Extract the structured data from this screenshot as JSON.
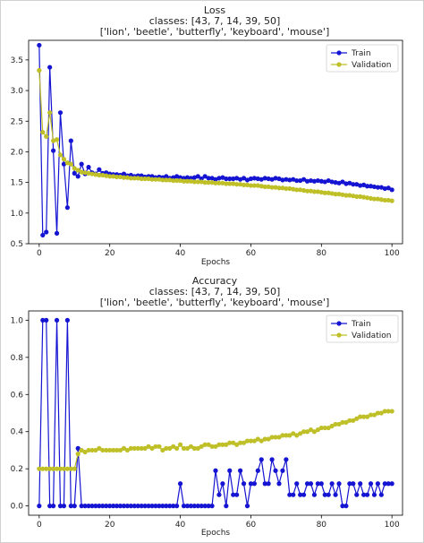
{
  "colors": {
    "train": "#1414d2",
    "validation": "#bfbf28",
    "axis": "#000000",
    "frame": "#c8c8c8"
  },
  "chart_data": [
    {
      "type": "line",
      "title": "Loss",
      "subtitle_1": "classes: [43, 7, 14, 39, 50]",
      "subtitle_2": "['lion', 'beetle', 'butterfly', 'keyboard', 'mouse']",
      "xlabel": "Epochs",
      "ylabel": "",
      "xlim": [
        -3,
        103
      ],
      "ylim": [
        0.5,
        3.82
      ],
      "xticks": [
        0,
        20,
        40,
        60,
        80,
        100
      ],
      "yticks": [
        0.5,
        1.0,
        1.5,
        2.0,
        2.5,
        3.0,
        3.5
      ],
      "ytick_labels": [
        "0.5",
        "1.0",
        "1.5",
        "2.0",
        "2.5",
        "3.0",
        "3.5"
      ],
      "legend_position": "top-right",
      "grid": false,
      "series": [
        {
          "name": "Train",
          "key": "train",
          "values": [
            3.74,
            0.64,
            0.69,
            3.38,
            2.02,
            0.67,
            2.64,
            1.8,
            1.09,
            2.18,
            1.65,
            1.6,
            1.8,
            1.64,
            1.75,
            1.66,
            1.64,
            1.71,
            1.65,
            1.66,
            1.64,
            1.63,
            1.63,
            1.62,
            1.64,
            1.61,
            1.62,
            1.6,
            1.61,
            1.61,
            1.59,
            1.6,
            1.6,
            1.58,
            1.59,
            1.58,
            1.6,
            1.57,
            1.58,
            1.6,
            1.58,
            1.57,
            1.58,
            1.57,
            1.58,
            1.6,
            1.56,
            1.6,
            1.57,
            1.57,
            1.55,
            1.57,
            1.58,
            1.56,
            1.56,
            1.56,
            1.57,
            1.55,
            1.57,
            1.54,
            1.56,
            1.57,
            1.56,
            1.55,
            1.57,
            1.56,
            1.55,
            1.57,
            1.56,
            1.54,
            1.55,
            1.54,
            1.55,
            1.53,
            1.53,
            1.55,
            1.52,
            1.53,
            1.52,
            1.53,
            1.52,
            1.51,
            1.53,
            1.51,
            1.5,
            1.49,
            1.51,
            1.48,
            1.49,
            1.47,
            1.47,
            1.45,
            1.46,
            1.44,
            1.44,
            1.43,
            1.42,
            1.42,
            1.4,
            1.41,
            1.38
          ]
        },
        {
          "name": "Validation",
          "key": "validation",
          "values": [
            3.33,
            2.32,
            2.25,
            2.64,
            2.18,
            2.2,
            1.95,
            1.88,
            1.82,
            1.8,
            1.73,
            1.7,
            1.67,
            1.66,
            1.65,
            1.64,
            1.63,
            1.62,
            1.62,
            1.61,
            1.6,
            1.6,
            1.59,
            1.59,
            1.58,
            1.58,
            1.57,
            1.57,
            1.57,
            1.56,
            1.56,
            1.56,
            1.55,
            1.55,
            1.55,
            1.54,
            1.54,
            1.54,
            1.53,
            1.53,
            1.53,
            1.52,
            1.52,
            1.52,
            1.51,
            1.51,
            1.51,
            1.5,
            1.5,
            1.5,
            1.49,
            1.49,
            1.49,
            1.48,
            1.48,
            1.48,
            1.47,
            1.47,
            1.46,
            1.46,
            1.45,
            1.45,
            1.45,
            1.44,
            1.43,
            1.43,
            1.42,
            1.42,
            1.41,
            1.41,
            1.4,
            1.4,
            1.39,
            1.38,
            1.38,
            1.37,
            1.36,
            1.36,
            1.35,
            1.35,
            1.34,
            1.33,
            1.33,
            1.32,
            1.31,
            1.31,
            1.3,
            1.29,
            1.29,
            1.28,
            1.27,
            1.27,
            1.26,
            1.25,
            1.24,
            1.23,
            1.23,
            1.22,
            1.21,
            1.21,
            1.2
          ]
        }
      ]
    },
    {
      "type": "line",
      "title": "Accuracy",
      "subtitle_1": "classes: [43, 7, 14, 39, 50]",
      "subtitle_2": "['lion', 'beetle', 'butterfly', 'keyboard', 'mouse']",
      "xlabel": "Epochs",
      "ylabel": "",
      "xlim": [
        -3,
        103
      ],
      "ylim": [
        -0.05,
        1.05
      ],
      "xticks": [
        0,
        20,
        40,
        60,
        80,
        100
      ],
      "yticks": [
        0.0,
        0.2,
        0.4,
        0.6,
        0.8,
        1.0
      ],
      "ytick_labels": [
        "0.0",
        "0.2",
        "0.4",
        "0.6",
        "0.8",
        "1.0"
      ],
      "legend_position": "top-right",
      "grid": false,
      "series": [
        {
          "name": "Train",
          "key": "train",
          "values": [
            0,
            1,
            1,
            0,
            0,
            1,
            0,
            0,
            1,
            0,
            0,
            0.31,
            0,
            0,
            0,
            0,
            0,
            0,
            0,
            0,
            0,
            0,
            0,
            0,
            0,
            0,
            0,
            0,
            0,
            0,
            0,
            0,
            0,
            0,
            0,
            0,
            0,
            0,
            0,
            0,
            0.12,
            0,
            0,
            0,
            0,
            0,
            0,
            0,
            0,
            0,
            0.19,
            0.06,
            0.12,
            0,
            0.19,
            0.06,
            0.06,
            0.19,
            0.12,
            0,
            0.12,
            0.12,
            0.19,
            0.25,
            0.12,
            0.12,
            0.25,
            0.19,
            0.12,
            0.19,
            0.25,
            0.06,
            0.06,
            0.12,
            0.06,
            0.06,
            0.12,
            0.12,
            0.06,
            0.12,
            0.12,
            0.06,
            0.06,
            0.12,
            0.06,
            0.12,
            0,
            0,
            0.12,
            0.12,
            0.06,
            0.12,
            0.06,
            0.06,
            0.12,
            0.06,
            0.12,
            0.06,
            0.12,
            0.12,
            0.12
          ]
        },
        {
          "name": "Validation",
          "key": "validation",
          "values": [
            0.2,
            0.2,
            0.2,
            0.2,
            0.2,
            0.2,
            0.2,
            0.2,
            0.2,
            0.2,
            0.2,
            0.28,
            0.3,
            0.29,
            0.3,
            0.3,
            0.3,
            0.31,
            0.3,
            0.3,
            0.3,
            0.3,
            0.3,
            0.3,
            0.31,
            0.3,
            0.31,
            0.31,
            0.31,
            0.31,
            0.31,
            0.32,
            0.31,
            0.32,
            0.32,
            0.3,
            0.31,
            0.31,
            0.32,
            0.31,
            0.33,
            0.31,
            0.31,
            0.32,
            0.31,
            0.31,
            0.32,
            0.33,
            0.33,
            0.32,
            0.32,
            0.33,
            0.33,
            0.33,
            0.34,
            0.34,
            0.33,
            0.34,
            0.34,
            0.35,
            0.35,
            0.35,
            0.36,
            0.35,
            0.36,
            0.36,
            0.37,
            0.37,
            0.37,
            0.38,
            0.38,
            0.38,
            0.39,
            0.38,
            0.39,
            0.4,
            0.4,
            0.41,
            0.4,
            0.41,
            0.42,
            0.42,
            0.42,
            0.43,
            0.44,
            0.44,
            0.45,
            0.45,
            0.46,
            0.46,
            0.47,
            0.48,
            0.48,
            0.48,
            0.49,
            0.49,
            0.5,
            0.5,
            0.51,
            0.51,
            0.51
          ]
        }
      ]
    }
  ]
}
